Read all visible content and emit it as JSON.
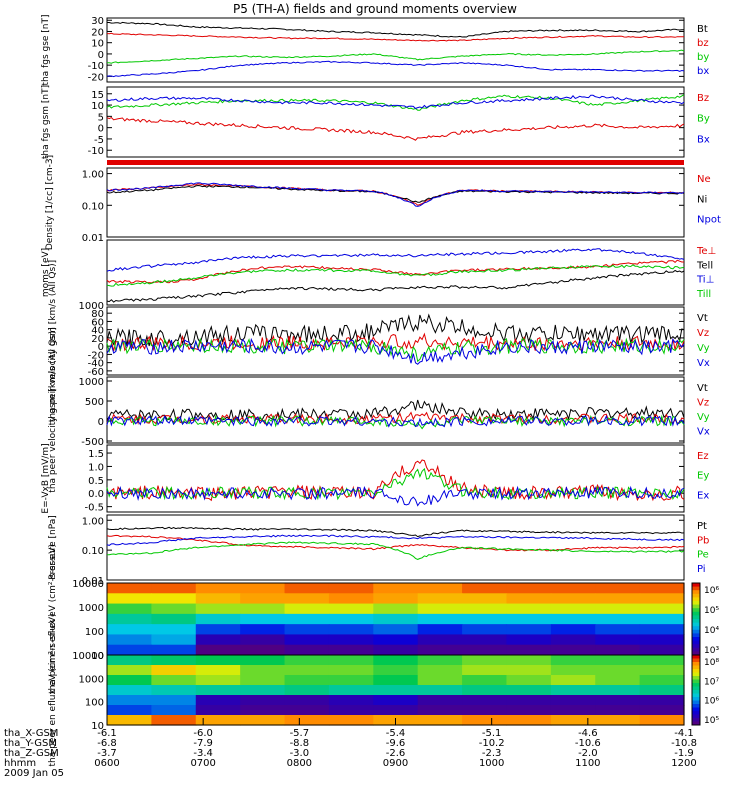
{
  "title": "P5 (TH-A) fields and ground moments overview",
  "date": "2009 Jan 05",
  "colors": {
    "black": "#000000",
    "red": "#e00000",
    "green": "#00c800",
    "blue": "#0000e0"
  },
  "time_axis": {
    "ticks": [
      "0600",
      "0700",
      "0800",
      "0900",
      "1000",
      "1100",
      "1200"
    ],
    "rows": [
      {
        "label": "tha_X-GSM",
        "values": [
          "-6.1",
          "-6.0",
          "-5.7",
          "-5.4",
          "-5.1",
          "-4.6",
          "-4.1"
        ]
      },
      {
        "label": "tha_Y-GSM",
        "values": [
          "-6.8",
          "-7.9",
          "-8.8",
          "-9.6",
          "-10.2",
          "-10.6",
          "-10.8"
        ]
      },
      {
        "label": "tha_Z-GSM",
        "values": [
          "-3.7",
          "-3.4",
          "-3.0",
          "-2.6",
          "-2.3",
          "-2.0",
          "-1.9"
        ]
      },
      {
        "label": "hhmm",
        "values": [
          "0600",
          "0700",
          "0800",
          "0900",
          "1000",
          "1100",
          "1200"
        ]
      }
    ]
  },
  "colorbars": [
    {
      "ticks": [
        "10⁶",
        "10⁵",
        "10⁴",
        "10³"
      ]
    },
    {
      "ticks": [
        "10⁸",
        "10⁷",
        "10⁶",
        "10⁵"
      ]
    }
  ],
  "chart_data": [
    {
      "type": "line",
      "ylabel": "tha fgs gse [nT]",
      "ylim": [
        -25,
        32
      ],
      "yticks": [
        "30",
        "20",
        "10",
        "0",
        "-10",
        "-20"
      ],
      "series": [
        {
          "name": "Bt",
          "values": [
            28,
            27,
            24,
            23,
            22,
            20,
            19,
            17,
            15,
            20,
            21,
            21,
            20,
            22
          ]
        },
        {
          "name": "bz",
          "values": [
            18,
            17,
            16,
            15,
            14,
            14,
            13,
            12,
            12,
            14,
            15,
            16,
            15,
            15
          ]
        },
        {
          "name": "by",
          "values": [
            -8,
            -6,
            -4,
            -2,
            -3,
            -2,
            0,
            -5,
            -2,
            0,
            -1,
            0,
            2,
            3
          ]
        },
        {
          "name": "bx",
          "values": [
            -20,
            -18,
            -15,
            -10,
            -8,
            -7,
            -8,
            -10,
            -8,
            -10,
            -14,
            -14,
            -15,
            -15
          ]
        }
      ]
    },
    {
      "type": "line",
      "ylabel": "tha fgs gsm [nT]",
      "ylim": [
        -13,
        18
      ],
      "yticks": [
        "15",
        "10",
        "5",
        "0",
        "-5",
        "-10"
      ],
      "series": [
        {
          "name": "Bz",
          "values": [
            4,
            3,
            2,
            1,
            0,
            -1,
            -2,
            -5,
            -2,
            -1,
            0,
            1,
            0,
            1
          ]
        },
        {
          "name": "By",
          "values": [
            9,
            10,
            11,
            12,
            12,
            12,
            11,
            8,
            12,
            14,
            13,
            10,
            12,
            14
          ]
        },
        {
          "name": "Bx",
          "values": [
            12,
            13,
            13,
            12,
            11,
            11,
            10,
            9,
            11,
            12,
            13,
            14,
            12,
            11
          ]
        }
      ]
    },
    {
      "type": "line",
      "ylabel": "Density [1/cc] [cm-3]",
      "ylim": [
        0.01,
        1.5
      ],
      "yscale": "log",
      "yticks": [
        "1.00",
        "0.10",
        "0.01"
      ],
      "series": [
        {
          "name": "Ne",
          "values": [
            0.3,
            0.35,
            0.45,
            0.4,
            0.35,
            0.3,
            0.28,
            0.1,
            0.3,
            0.28,
            0.27,
            0.26,
            0.25,
            0.25
          ]
        },
        {
          "name": "Ni",
          "values": [
            0.25,
            0.3,
            0.4,
            0.38,
            0.33,
            0.29,
            0.27,
            0.12,
            0.28,
            0.27,
            0.26,
            0.25,
            0.24,
            0.24
          ]
        },
        {
          "name": "Npot",
          "values": [
            0.3,
            0.35,
            0.5,
            0.42,
            0.35,
            0.3,
            0.28,
            0.09,
            0.3,
            0.28,
            0.27,
            0.26,
            0.25,
            0.25
          ]
        }
      ]
    },
    {
      "type": "line",
      "ylabel": "moms [eV]",
      "ylim": [
        1000,
        20000
      ],
      "yscale": "log",
      "yticks": [
        "1000"
      ],
      "series": [
        {
          "name": "Te⊥",
          "values": [
            3000,
            2800,
            3200,
            5000,
            6000,
            5500,
            5200,
            4000,
            5000,
            5200,
            5500,
            5800,
            7000,
            7500
          ]
        },
        {
          "name": "Tell",
          "values": [
            1200,
            1300,
            1500,
            1800,
            2200,
            2100,
            2000,
            2300,
            2300,
            2200,
            2800,
            3500,
            4200,
            4800
          ]
        },
        {
          "name": "Ti⊥",
          "values": [
            5000,
            6000,
            7000,
            9000,
            9500,
            9800,
            10000,
            9800,
            10500,
            11000,
            12000,
            13000,
            11000,
            8000
          ]
        },
        {
          "name": "Till",
          "values": [
            2500,
            2800,
            3500,
            4500,
            5000,
            5000,
            4800,
            3800,
            4700,
            5000,
            5500,
            6000,
            6000,
            5500
          ]
        }
      ]
    },
    {
      "type": "line",
      "ylabel": "tha peir velocity gsm [km/s (All Qs)]",
      "ylim": [
        -70,
        95
      ],
      "yticks": [
        "80",
        "60",
        "40",
        "20",
        "0",
        "-20",
        "-40",
        "-60"
      ],
      "series": [
        {
          "name": "Vt",
          "values": [
            20,
            20,
            25,
            30,
            30,
            30,
            35,
            60,
            45,
            30,
            30,
            30,
            30,
            30
          ]
        },
        {
          "name": "Vz",
          "values": [
            5,
            5,
            6,
            8,
            8,
            8,
            10,
            12,
            8,
            6,
            6,
            6,
            6,
            6
          ]
        },
        {
          "name": "Vy",
          "values": [
            0,
            0,
            2,
            0,
            -2,
            0,
            0,
            -20,
            -5,
            0,
            0,
            0,
            0,
            0
          ]
        },
        {
          "name": "Vx",
          "values": [
            0,
            -2,
            0,
            0,
            -5,
            -2,
            0,
            -30,
            -15,
            0,
            -5,
            0,
            -5,
            0
          ]
        }
      ]
    },
    {
      "type": "line",
      "ylabel": "tha peer velocity gsm [km/s (All Qs)]",
      "ylim": [
        -550,
        1100
      ],
      "yticks": [
        "1000",
        "500",
        "0",
        "-500"
      ],
      "series": [
        {
          "name": "Vt",
          "values": [
            150,
            150,
            160,
            160,
            170,
            170,
            180,
            400,
            200,
            180,
            190,
            200,
            210,
            210
          ]
        },
        {
          "name": "Vz",
          "values": [
            50,
            50,
            50,
            55,
            55,
            55,
            60,
            100,
            60,
            60,
            60,
            60,
            60,
            60
          ]
        },
        {
          "name": "Vy",
          "values": [
            0,
            0,
            0,
            0,
            0,
            0,
            0,
            -100,
            0,
            0,
            0,
            0,
            0,
            0
          ]
        },
        {
          "name": "Vx",
          "values": [
            0,
            0,
            0,
            0,
            0,
            0,
            0,
            -60,
            0,
            0,
            0,
            0,
            0,
            0
          ]
        }
      ]
    },
    {
      "type": "line",
      "ylabel": "E=-VxB [mV/m]",
      "ylim": [
        -0.7,
        1.8
      ],
      "yticks": [
        "1.5",
        "1.0",
        "0.5",
        "0.0",
        "-0.5"
      ],
      "series": [
        {
          "name": "Ez",
          "values": [
            0.0,
            0.05,
            0.0,
            0.0,
            0.05,
            0.0,
            0.0,
            1.2,
            0.2,
            0.0,
            0.0,
            0.05,
            0.0,
            0.0
          ]
        },
        {
          "name": "Ey",
          "values": [
            0.0,
            0.0,
            0.0,
            0.05,
            0.0,
            0.0,
            0.0,
            0.8,
            0.1,
            0.0,
            0.0,
            0.0,
            0.05,
            0.0
          ]
        },
        {
          "name": "Ex",
          "values": [
            0.0,
            0.0,
            0.0,
            0.0,
            0.0,
            0.0,
            0.0,
            -0.3,
            0.0,
            0.0,
            0.0,
            0.0,
            0.0,
            0.0
          ]
        }
      ]
    },
    {
      "type": "line",
      "ylabel": "Pressure [nPa]",
      "ylim": [
        0.01,
        1.5
      ],
      "yscale": "log",
      "yticks": [
        "1.00",
        "0.10",
        "0.01"
      ],
      "series": [
        {
          "name": "Pt",
          "values": [
            0.5,
            0.55,
            0.55,
            0.5,
            0.5,
            0.48,
            0.45,
            0.3,
            0.45,
            0.42,
            0.4,
            0.38,
            0.38,
            0.38
          ]
        },
        {
          "name": "Pb",
          "values": [
            0.3,
            0.28,
            0.22,
            0.15,
            0.13,
            0.12,
            0.11,
            0.15,
            0.12,
            0.1,
            0.1,
            0.12,
            0.12,
            0.13
          ]
        },
        {
          "name": "Pe",
          "values": [
            0.07,
            0.08,
            0.12,
            0.15,
            0.18,
            0.17,
            0.16,
            0.05,
            0.12,
            0.11,
            0.1,
            0.09,
            0.09,
            0.09
          ]
        },
        {
          "name": "Pi",
          "values": [
            0.15,
            0.18,
            0.25,
            0.28,
            0.3,
            0.3,
            0.28,
            0.25,
            0.28,
            0.27,
            0.26,
            0.25,
            0.23,
            0.22
          ]
        }
      ]
    },
    {
      "type": "heatmap",
      "ylabel": "tha peir en eflux eV (cm²-s-sr-eV)",
      "yscale": "log",
      "ylim": [
        10,
        10000
      ],
      "yticks": [
        "10000",
        "1000",
        "100",
        "10"
      ],
      "rows": [
        "10000",
        "3000",
        "1000",
        "300",
        "100",
        "30",
        "10"
      ],
      "columns": [
        "0600",
        "0630",
        "0700",
        "0730",
        "0800",
        "0830",
        "0900",
        "0930",
        "1000",
        "1030",
        "1100",
        "1130",
        "1200"
      ],
      "values": [
        [
          5.8,
          5.8,
          5.7,
          5.7,
          5.8,
          5.8,
          5.7,
          5.7,
          5.8,
          5.8,
          5.8,
          5.8,
          5.8
        ],
        [
          5.3,
          5.3,
          5.5,
          5.6,
          5.6,
          5.7,
          5.6,
          5.5,
          5.5,
          5.6,
          5.6,
          5.6,
          5.6
        ],
        [
          4.9,
          5.0,
          5.1,
          5.1,
          5.2,
          5.2,
          5.1,
          5.2,
          5.2,
          5.2,
          5.2,
          5.2,
          5.2
        ],
        [
          4.5,
          4.6,
          4.3,
          4.2,
          4.2,
          4.2,
          4.3,
          4.2,
          4.2,
          4.2,
          4.2,
          4.2,
          4.2
        ],
        [
          4.2,
          4.2,
          3.8,
          3.7,
          3.8,
          3.8,
          3.9,
          3.7,
          3.8,
          3.8,
          3.7,
          3.8,
          3.8
        ],
        [
          4.0,
          4.1,
          3.3,
          3.2,
          3.4,
          3.4,
          3.5,
          3.3,
          3.3,
          3.4,
          3.3,
          3.4,
          3.4
        ],
        [
          3.8,
          3.8,
          3.0,
          3.0,
          3.1,
          3.1,
          3.2,
          3.1,
          3.1,
          3.1,
          3.1,
          3.1,
          3.2
        ]
      ]
    },
    {
      "type": "heatmap",
      "ylabel": "tha peer en eflux eV (cm²-s-sr-eV)",
      "yscale": "log",
      "ylim": [
        10,
        10000
      ],
      "yticks": [
        "10000",
        "1000",
        "100",
        "10"
      ],
      "rows": [
        "10000",
        "3000",
        "1000",
        "300",
        "100",
        "30",
        "10"
      ],
      "columns": [
        "0600",
        "0630",
        "0700",
        "0730",
        "0800",
        "0830",
        "0900",
        "0930",
        "1000",
        "1030",
        "1100",
        "1130",
        "1200"
      ],
      "values": [
        [
          6.6,
          6.7,
          6.8,
          6.8,
          6.9,
          6.9,
          6.8,
          6.9,
          7.0,
          7.0,
          6.9,
          6.9,
          6.9
        ],
        [
          7.1,
          7.4,
          7.2,
          7.0,
          7.0,
          7.0,
          6.9,
          7.0,
          7.1,
          7.1,
          7.0,
          7.0,
          7.0
        ],
        [
          6.8,
          7.0,
          7.1,
          7.0,
          6.9,
          6.9,
          6.8,
          7.0,
          6.9,
          7.0,
          7.1,
          7.0,
          6.9
        ],
        [
          6.3,
          6.4,
          6.5,
          6.5,
          6.6,
          6.5,
          6.5,
          6.5,
          6.6,
          6.6,
          6.5,
          6.5,
          6.6
        ],
        [
          6.0,
          6.0,
          5.3,
          5.2,
          5.2,
          5.3,
          5.4,
          5.2,
          5.2,
          5.2,
          5.2,
          5.2,
          5.2
        ],
        [
          5.8,
          5.9,
          5.2,
          5.1,
          5.1,
          5.2,
          5.2,
          5.1,
          5.1,
          5.1,
          5.1,
          5.1,
          5.1
        ],
        [
          7.5,
          7.8,
          7.6,
          7.6,
          7.7,
          7.7,
          7.6,
          7.6,
          7.7,
          7.7,
          7.6,
          7.6,
          7.7
        ]
      ]
    }
  ]
}
